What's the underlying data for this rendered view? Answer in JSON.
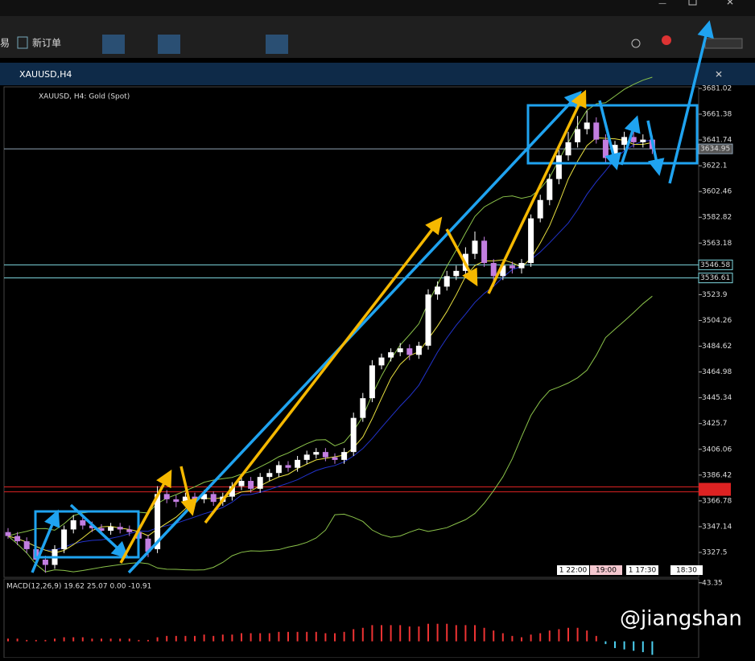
{
  "window": {
    "title": "XAUUSD,H4",
    "toolbar": {
      "left_cut": "易",
      "new_order": "新订单"
    },
    "watermark": "@jiangshan"
  },
  "chart_data": {
    "type": "candlestick",
    "title": "XAUUSD, H4:  Gold (Spot)",
    "open": [
      3343,
      3340,
      3336,
      3330,
      3322,
      3318,
      3330,
      3345,
      3352,
      3348,
      3346,
      3344,
      3347,
      3345,
      3343,
      3338,
      3330,
      3372,
      3368,
      3366,
      3370,
      3368,
      3372,
      3366,
      3370,
      3378,
      3382,
      3376,
      3385,
      3388,
      3394,
      3392,
      3398,
      3402,
      3404,
      3400,
      3398,
      3404,
      3430,
      3445,
      3470,
      3476,
      3480,
      3483,
      3478,
      3485,
      3524,
      3530,
      3538,
      3542,
      3555,
      3565,
      3548,
      3538,
      3546,
      3544,
      3548,
      3582,
      3596,
      3612,
      3630,
      3640,
      3650,
      3655,
      3642,
      3628,
      3638,
      3644,
      3640,
      3642
    ],
    "high": [
      3346,
      3343,
      3339,
      3333,
      3325,
      3333,
      3348,
      3356,
      3355,
      3351,
      3349,
      3350,
      3350,
      3348,
      3346,
      3341,
      3378,
      3375,
      3371,
      3373,
      3373,
      3375,
      3374,
      3373,
      3381,
      3385,
      3385,
      3388,
      3391,
      3397,
      3397,
      3401,
      3405,
      3407,
      3407,
      3403,
      3407,
      3434,
      3449,
      3474,
      3479,
      3483,
      3487,
      3486,
      3488,
      3528,
      3534,
      3542,
      3546,
      3560,
      3572,
      3568,
      3551,
      3549,
      3549,
      3551,
      3585,
      3600,
      3616,
      3634,
      3648,
      3660,
      3664,
      3659,
      3646,
      3641,
      3648,
      3648,
      3646,
      3645
    ],
    "low": [
      3338,
      3333,
      3327,
      3318,
      3312,
      3315,
      3327,
      3342,
      3345,
      3343,
      3341,
      3341,
      3342,
      3340,
      3335,
      3324,
      3327,
      3365,
      3362,
      3363,
      3365,
      3365,
      3363,
      3363,
      3367,
      3375,
      3373,
      3373,
      3382,
      3385,
      3389,
      3389,
      3395,
      3399,
      3397,
      3395,
      3395,
      3401,
      3427,
      3442,
      3467,
      3473,
      3477,
      3474,
      3475,
      3482,
      3520,
      3527,
      3535,
      3539,
      3551,
      3545,
      3530,
      3535,
      3540,
      3540,
      3545,
      3579,
      3592,
      3608,
      3626,
      3636,
      3646,
      3639,
      3624,
      3622,
      3634,
      3636,
      3636,
      3631
    ],
    "close": [
      3340,
      3336,
      3330,
      3322,
      3318,
      3330,
      3345,
      3352,
      3348,
      3346,
      3344,
      3347,
      3345,
      3343,
      3338,
      3328,
      3372,
      3368,
      3366,
      3370,
      3368,
      3372,
      3366,
      3370,
      3378,
      3382,
      3376,
      3385,
      3388,
      3394,
      3392,
      3398,
      3402,
      3404,
      3400,
      3398,
      3404,
      3430,
      3445,
      3470,
      3476,
      3480,
      3483,
      3478,
      3485,
      3524,
      3530,
      3538,
      3542,
      3555,
      3565,
      3548,
      3538,
      3546,
      3544,
      3548,
      3582,
      3596,
      3612,
      3630,
      3640,
      3650,
      3655,
      3642,
      3628,
      3638,
      3644,
      3640,
      3642,
      3634.95
    ],
    "colors": {
      "up": "#ffffff",
      "down": "#c27ee0"
    },
    "ylim": [
      3308.5,
      3682.2
    ],
    "yticks": [
      3681.02,
      3661.38,
      3641.74,
      3622.1,
      3602.46,
      3582.82,
      3563.18,
      3523.9,
      3504.26,
      3484.62,
      3464.98,
      3445.34,
      3425.7,
      3406.06,
      3386.42,
      3366.78,
      3347.14,
      3327.5
    ],
    "price_lines": [
      {
        "value": 3634.95,
        "color": "#8fa3b5"
      },
      {
        "value": 3546.58,
        "color": "#7fd8e0"
      },
      {
        "value": 3536.61,
        "color": "#7fd8e0"
      }
    ],
    "red_lines": [
      3377.4,
      3373.7
    ],
    "time_labels": [
      "1 22:00",
      "19:00",
      "1 17:30",
      "18:30"
    ],
    "macd": {
      "label": "MACD(12,26,9) 19.62 25.07 0.00 -10.91",
      "ylim": [
        -11,
        45
      ],
      "yticks": [
        43.35
      ],
      "histogram": [
        2,
        2,
        1,
        1,
        1,
        2,
        3,
        3,
        3,
        2,
        2,
        2,
        2,
        2,
        1,
        1,
        3,
        4,
        4,
        4,
        4,
        5,
        4,
        5,
        5,
        6,
        6,
        6,
        6,
        7,
        7,
        7,
        7,
        7,
        6,
        6,
        7,
        9,
        10,
        12,
        12,
        12,
        12,
        11,
        11,
        13,
        13,
        13,
        12,
        12,
        12,
        10,
        8,
        6,
        4,
        3,
        5,
        6,
        8,
        9,
        10,
        10,
        8,
        4,
        -2,
        -5,
        -6,
        -7,
        -8,
        -10
      ]
    }
  }
}
